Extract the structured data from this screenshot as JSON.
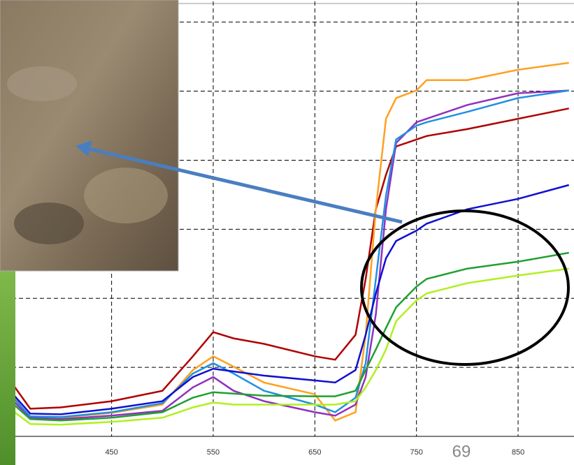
{
  "page_number": "69",
  "chart_data": {
    "type": "line",
    "x": [
      350,
      370,
      400,
      450,
      500,
      530,
      550,
      570,
      600,
      650,
      670,
      690,
      700,
      710,
      720,
      730,
      750,
      760,
      800,
      850,
      900
    ],
    "series": [
      {
        "color": "#b00000",
        "values": [
          8.1,
          4.0,
          4.2,
          5.1,
          6.6,
          11.6,
          15.1,
          14.2,
          13.4,
          11.6,
          11.1,
          14.7,
          22.8,
          32.9,
          37.9,
          42.0,
          43.0,
          43.5,
          44.5,
          46.0,
          47.5
        ]
      },
      {
        "color": "#ffa020",
        "values": [
          6.6,
          2.5,
          2.7,
          3.4,
          4.6,
          9.6,
          11.6,
          10.1,
          7.8,
          6.1,
          2.3,
          3.5,
          14.7,
          32.9,
          46.0,
          49.0,
          50.1,
          51.6,
          51.6,
          53.1,
          54.1
        ]
      },
      {
        "color": "#9030c0",
        "values": [
          5.6,
          2.7,
          2.5,
          3.0,
          3.7,
          7.1,
          8.6,
          6.6,
          5.1,
          3.5,
          3.0,
          4.6,
          8.6,
          17.7,
          32.9,
          42.5,
          45.5,
          46.0,
          48.0,
          49.7,
          50.1
        ]
      },
      {
        "color": "#2090e0",
        "values": [
          6.1,
          2.9,
          2.8,
          3.5,
          4.8,
          9.1,
          10.6,
          9.1,
          6.6,
          4.6,
          3.5,
          5.6,
          10.6,
          22.8,
          34.9,
          43.0,
          45.0,
          45.5,
          47.0,
          49.0,
          50.1
        ]
      },
      {
        "color": "#1010d0",
        "values": [
          6.6,
          3.3,
          3.2,
          4.0,
          5.1,
          8.6,
          9.8,
          9.4,
          8.8,
          8.1,
          7.8,
          9.6,
          14.7,
          20.7,
          25.8,
          28.3,
          29.8,
          30.8,
          32.9,
          34.4,
          36.4
        ]
      },
      {
        "color": "#20a030",
        "values": [
          5.1,
          2.5,
          2.3,
          2.7,
          3.5,
          5.6,
          6.4,
          6.2,
          5.9,
          5.8,
          5.8,
          6.6,
          9.6,
          12.6,
          15.7,
          18.7,
          21.7,
          22.8,
          24.3,
          25.3,
          26.6
        ]
      },
      {
        "color": "#b0f020",
        "values": [
          4.0,
          1.8,
          1.7,
          2.1,
          2.7,
          4.2,
          4.9,
          4.6,
          4.6,
          4.6,
          4.6,
          5.1,
          7.1,
          9.6,
          12.6,
          16.7,
          19.7,
          20.7,
          22.2,
          23.3,
          24.3
        ]
      }
    ],
    "xlim": [
      345,
      905
    ],
    "xticks": [
      450,
      550,
      650,
      750,
      850
    ],
    "ylim": [
      0,
      63
    ],
    "yticks": [
      10,
      20,
      30,
      40,
      50,
      60
    ],
    "grid": true
  }
}
